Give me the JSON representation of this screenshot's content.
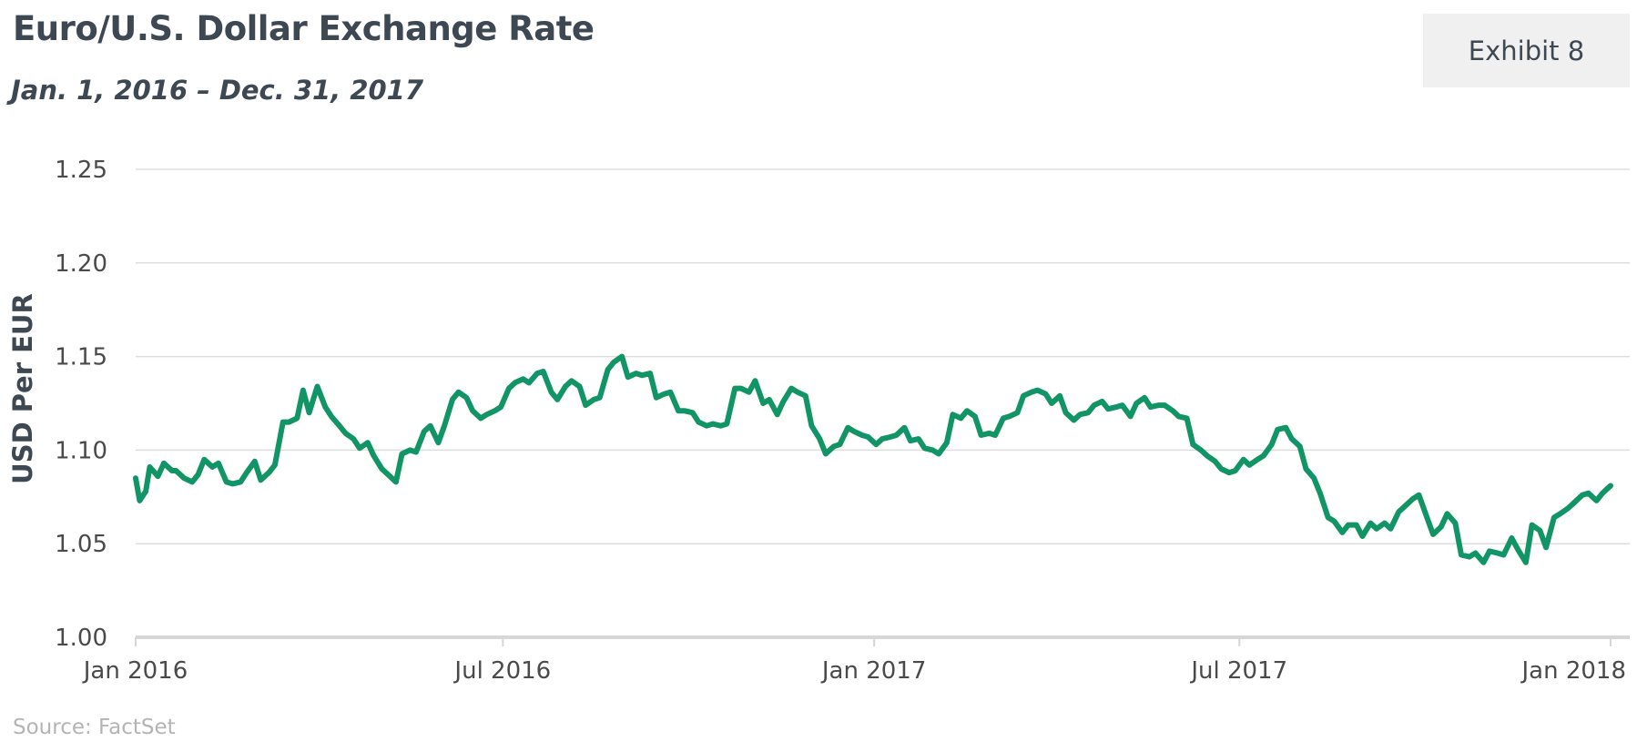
{
  "header": {
    "title": "Euro/U.S. Dollar Exchange Rate",
    "subtitle": "Jan. 1, 2016 – Dec. 31, 2017",
    "exhibit_label": "Exhibit 8"
  },
  "footer": {
    "source": "Source: FactSet"
  },
  "colors": {
    "line": "#119466",
    "grid": "#dddddd",
    "axis": "#d6d6d6",
    "text": "#3d4852"
  },
  "chart_data": {
    "type": "line",
    "title": "Euro/U.S. Dollar Exchange Rate",
    "subtitle": "Jan. 1, 2016 – Dec. 31, 2017",
    "xlabel": "",
    "ylabel": "USD Per EUR",
    "ylim": [
      1.0,
      1.25
    ],
    "xlim": [
      "2016-01-01",
      "2018-01-01"
    ],
    "yticks": [
      {
        "value": 1.0,
        "label": "1.00"
      },
      {
        "value": 1.05,
        "label": "1.05"
      },
      {
        "value": 1.1,
        "label": "1.10"
      },
      {
        "value": 1.15,
        "label": "1.15"
      },
      {
        "value": 1.2,
        "label": "1.20"
      },
      {
        "value": 1.25,
        "label": "1.25"
      }
    ],
    "xticks": [
      {
        "date": "2016-01-01",
        "label": "Jan 2016"
      },
      {
        "date": "2016-07-01",
        "label": "Jul 2016"
      },
      {
        "date": "2017-01-01",
        "label": "Jan 2017"
      },
      {
        "date": "2017-07-01",
        "label": "Jul 2017"
      },
      {
        "date": "2018-01-01",
        "label": "Jan 2018"
      }
    ],
    "grid": true,
    "legend": "none",
    "series": [
      {
        "points": [
          [
            "2016-01-01",
            1.085
          ],
          [
            "2016-01-03",
            1.073
          ],
          [
            "2016-01-06",
            1.078
          ],
          [
            "2016-01-08",
            1.091
          ],
          [
            "2016-01-12",
            1.086
          ],
          [
            "2016-01-15",
            1.093
          ],
          [
            "2016-01-19",
            1.089
          ],
          [
            "2016-01-21",
            1.089
          ],
          [
            "2016-01-25",
            1.085
          ],
          [
            "2016-01-29",
            1.083
          ],
          [
            "2016-02-01",
            1.087
          ],
          [
            "2016-02-04",
            1.095
          ],
          [
            "2016-02-08",
            1.091
          ],
          [
            "2016-02-11",
            1.093
          ],
          [
            "2016-02-15",
            1.083
          ],
          [
            "2016-02-18",
            1.082
          ],
          [
            "2016-02-22",
            1.083
          ],
          [
            "2016-02-25",
            1.088
          ],
          [
            "2016-02-29",
            1.094
          ],
          [
            "2016-03-03",
            1.084
          ],
          [
            "2016-03-07",
            1.088
          ],
          [
            "2016-03-10",
            1.092
          ],
          [
            "2016-03-14",
            1.115
          ],
          [
            "2016-03-17",
            1.115
          ],
          [
            "2016-03-21",
            1.117
          ],
          [
            "2016-03-24",
            1.132
          ],
          [
            "2016-03-27",
            1.12
          ],
          [
            "2016-03-31",
            1.134
          ],
          [
            "2016-04-04",
            1.123
          ],
          [
            "2016-04-07",
            1.118
          ],
          [
            "2016-04-11",
            1.113
          ],
          [
            "2016-04-14",
            1.109
          ],
          [
            "2016-04-18",
            1.106
          ],
          [
            "2016-04-21",
            1.101
          ],
          [
            "2016-04-25",
            1.104
          ],
          [
            "2016-04-28",
            1.097
          ],
          [
            "2016-05-02",
            1.09
          ],
          [
            "2016-05-05",
            1.087
          ],
          [
            "2016-05-09",
            1.083
          ],
          [
            "2016-05-12",
            1.098
          ],
          [
            "2016-05-16",
            1.1
          ],
          [
            "2016-05-19",
            1.099
          ],
          [
            "2016-05-23",
            1.11
          ],
          [
            "2016-05-26",
            1.113
          ],
          [
            "2016-05-30",
            1.104
          ],
          [
            "2016-06-02",
            1.113
          ],
          [
            "2016-06-06",
            1.127
          ],
          [
            "2016-06-09",
            1.131
          ],
          [
            "2016-06-13",
            1.128
          ],
          [
            "2016-06-16",
            1.121
          ],
          [
            "2016-06-20",
            1.117
          ],
          [
            "2016-06-23",
            1.119
          ],
          [
            "2016-06-27",
            1.121
          ],
          [
            "2016-06-30",
            1.123
          ],
          [
            "2016-07-04",
            1.133
          ],
          [
            "2016-07-07",
            1.136
          ],
          [
            "2016-07-11",
            1.138
          ],
          [
            "2016-07-14",
            1.136
          ],
          [
            "2016-07-18",
            1.141
          ],
          [
            "2016-07-21",
            1.142
          ],
          [
            "2016-07-25",
            1.131
          ],
          [
            "2016-07-28",
            1.127
          ],
          [
            "2016-08-01",
            1.134
          ],
          [
            "2016-08-04",
            1.137
          ],
          [
            "2016-08-08",
            1.134
          ],
          [
            "2016-08-11",
            1.124
          ],
          [
            "2016-08-15",
            1.127
          ],
          [
            "2016-08-18",
            1.128
          ],
          [
            "2016-08-22",
            1.143
          ],
          [
            "2016-08-25",
            1.147
          ],
          [
            "2016-08-29",
            1.15
          ],
          [
            "2016-09-01",
            1.139
          ],
          [
            "2016-09-05",
            1.141
          ],
          [
            "2016-09-08",
            1.14
          ],
          [
            "2016-09-12",
            1.141
          ],
          [
            "2016-09-15",
            1.128
          ],
          [
            "2016-09-19",
            1.13
          ],
          [
            "2016-09-22",
            1.131
          ],
          [
            "2016-09-26",
            1.121
          ],
          [
            "2016-09-29",
            1.121
          ],
          [
            "2016-10-03",
            1.12
          ],
          [
            "2016-10-06",
            1.115
          ],
          [
            "2016-10-10",
            1.113
          ],
          [
            "2016-10-13",
            1.114
          ],
          [
            "2016-10-17",
            1.113
          ],
          [
            "2016-10-20",
            1.114
          ],
          [
            "2016-10-24",
            1.133
          ],
          [
            "2016-10-27",
            1.133
          ],
          [
            "2016-10-31",
            1.131
          ],
          [
            "2016-11-03",
            1.137
          ],
          [
            "2016-11-07",
            1.125
          ],
          [
            "2016-11-10",
            1.127
          ],
          [
            "2016-11-14",
            1.119
          ],
          [
            "2016-11-17",
            1.126
          ],
          [
            "2016-11-21",
            1.133
          ],
          [
            "2016-11-24",
            1.131
          ],
          [
            "2016-11-28",
            1.129
          ],
          [
            "2016-12-01",
            1.113
          ],
          [
            "2016-12-05",
            1.106
          ],
          [
            "2016-12-08",
            1.098
          ],
          [
            "2016-12-12",
            1.102
          ],
          [
            "2016-12-15",
            1.103
          ],
          [
            "2016-12-19",
            1.112
          ],
          [
            "2016-12-22",
            1.11
          ],
          [
            "2016-12-26",
            1.108
          ],
          [
            "2016-12-29",
            1.107
          ],
          [
            "2017-01-02",
            1.103
          ],
          [
            "2017-01-05",
            1.106
          ],
          [
            "2017-01-09",
            1.107
          ],
          [
            "2017-01-12",
            1.108
          ],
          [
            "2017-01-16",
            1.112
          ],
          [
            "2017-01-19",
            1.105
          ],
          [
            "2017-01-23",
            1.106
          ],
          [
            "2017-01-26",
            1.101
          ],
          [
            "2017-01-30",
            1.1
          ],
          [
            "2017-02-02",
            1.098
          ],
          [
            "2017-02-06",
            1.104
          ],
          [
            "2017-02-09",
            1.119
          ],
          [
            "2017-02-13",
            1.117
          ],
          [
            "2017-02-16",
            1.121
          ],
          [
            "2017-02-20",
            1.118
          ],
          [
            "2017-02-23",
            1.108
          ],
          [
            "2017-02-27",
            1.109
          ],
          [
            "2017-03-02",
            1.108
          ],
          [
            "2017-03-06",
            1.117
          ],
          [
            "2017-03-09",
            1.118
          ],
          [
            "2017-03-13",
            1.12
          ],
          [
            "2017-03-16",
            1.129
          ],
          [
            "2017-03-20",
            1.131
          ],
          [
            "2017-03-23",
            1.132
          ],
          [
            "2017-03-27",
            1.13
          ],
          [
            "2017-03-30",
            1.125
          ],
          [
            "2017-04-03",
            1.129
          ],
          [
            "2017-04-06",
            1.12
          ],
          [
            "2017-04-10",
            1.116
          ],
          [
            "2017-04-13",
            1.119
          ],
          [
            "2017-04-17",
            1.12
          ],
          [
            "2017-04-20",
            1.124
          ],
          [
            "2017-04-24",
            1.126
          ],
          [
            "2017-04-27",
            1.122
          ],
          [
            "2017-05-01",
            1.123
          ],
          [
            "2017-05-04",
            1.124
          ],
          [
            "2017-05-08",
            1.118
          ],
          [
            "2017-05-11",
            1.125
          ],
          [
            "2017-05-15",
            1.128
          ],
          [
            "2017-05-18",
            1.123
          ],
          [
            "2017-05-22",
            1.124
          ],
          [
            "2017-05-25",
            1.124
          ],
          [
            "2017-05-29",
            1.121
          ],
          [
            "2017-06-01",
            1.118
          ],
          [
            "2017-06-05",
            1.117
          ],
          [
            "2017-06-08",
            1.103
          ],
          [
            "2017-06-12",
            1.1
          ],
          [
            "2017-06-15",
            1.097
          ],
          [
            "2017-06-19",
            1.094
          ],
          [
            "2017-06-22",
            1.09
          ],
          [
            "2017-06-26",
            1.088
          ],
          [
            "2017-06-29",
            1.089
          ],
          [
            "2017-07-03",
            1.095
          ],
          [
            "2017-07-06",
            1.092
          ],
          [
            "2017-07-10",
            1.095
          ],
          [
            "2017-07-13",
            1.097
          ],
          [
            "2017-07-17",
            1.103
          ],
          [
            "2017-07-20",
            1.111
          ],
          [
            "2017-07-24",
            1.112
          ],
          [
            "2017-07-27",
            1.106
          ],
          [
            "2017-07-31",
            1.102
          ],
          [
            "2017-08-03",
            1.09
          ],
          [
            "2017-08-07",
            1.085
          ],
          [
            "2017-08-10",
            1.077
          ],
          [
            "2017-08-14",
            1.064
          ],
          [
            "2017-08-17",
            1.062
          ],
          [
            "2017-08-21",
            1.056
          ],
          [
            "2017-08-24",
            1.06
          ],
          [
            "2017-08-28",
            1.06
          ],
          [
            "2017-08-31",
            1.054
          ],
          [
            "2017-09-04",
            1.061
          ],
          [
            "2017-09-07",
            1.058
          ],
          [
            "2017-09-11",
            1.061
          ],
          [
            "2017-09-14",
            1.058
          ],
          [
            "2017-09-18",
            1.067
          ],
          [
            "2017-09-21",
            1.07
          ],
          [
            "2017-09-25",
            1.074
          ],
          [
            "2017-09-28",
            1.076
          ],
          [
            "2017-10-02",
            1.064
          ],
          [
            "2017-10-05",
            1.055
          ],
          [
            "2017-10-09",
            1.059
          ],
          [
            "2017-10-12",
            1.066
          ],
          [
            "2017-10-16",
            1.061
          ],
          [
            "2017-10-19",
            1.044
          ],
          [
            "2017-10-23",
            1.043
          ],
          [
            "2017-10-26",
            1.045
          ],
          [
            "2017-10-30",
            1.04
          ],
          [
            "2017-11-02",
            1.046
          ],
          [
            "2017-11-06",
            1.045
          ],
          [
            "2017-11-09",
            1.044
          ],
          [
            "2017-11-13",
            1.053
          ],
          [
            "2017-11-16",
            1.047
          ],
          [
            "2017-11-20",
            1.04
          ],
          [
            "2017-11-23",
            1.06
          ],
          [
            "2017-11-27",
            1.057
          ],
          [
            "2017-11-30",
            1.048
          ],
          [
            "2017-12-04",
            1.064
          ],
          [
            "2017-12-07",
            1.066
          ],
          [
            "2017-12-11",
            1.069
          ],
          [
            "2017-12-14",
            1.072
          ],
          [
            "2017-12-18",
            1.076
          ],
          [
            "2017-12-21",
            1.077
          ],
          [
            "2017-12-25",
            1.073
          ],
          [
            "2017-12-28",
            1.077
          ],
          [
            "2018-01-01",
            1.081
          ]
        ]
      }
    ]
  }
}
